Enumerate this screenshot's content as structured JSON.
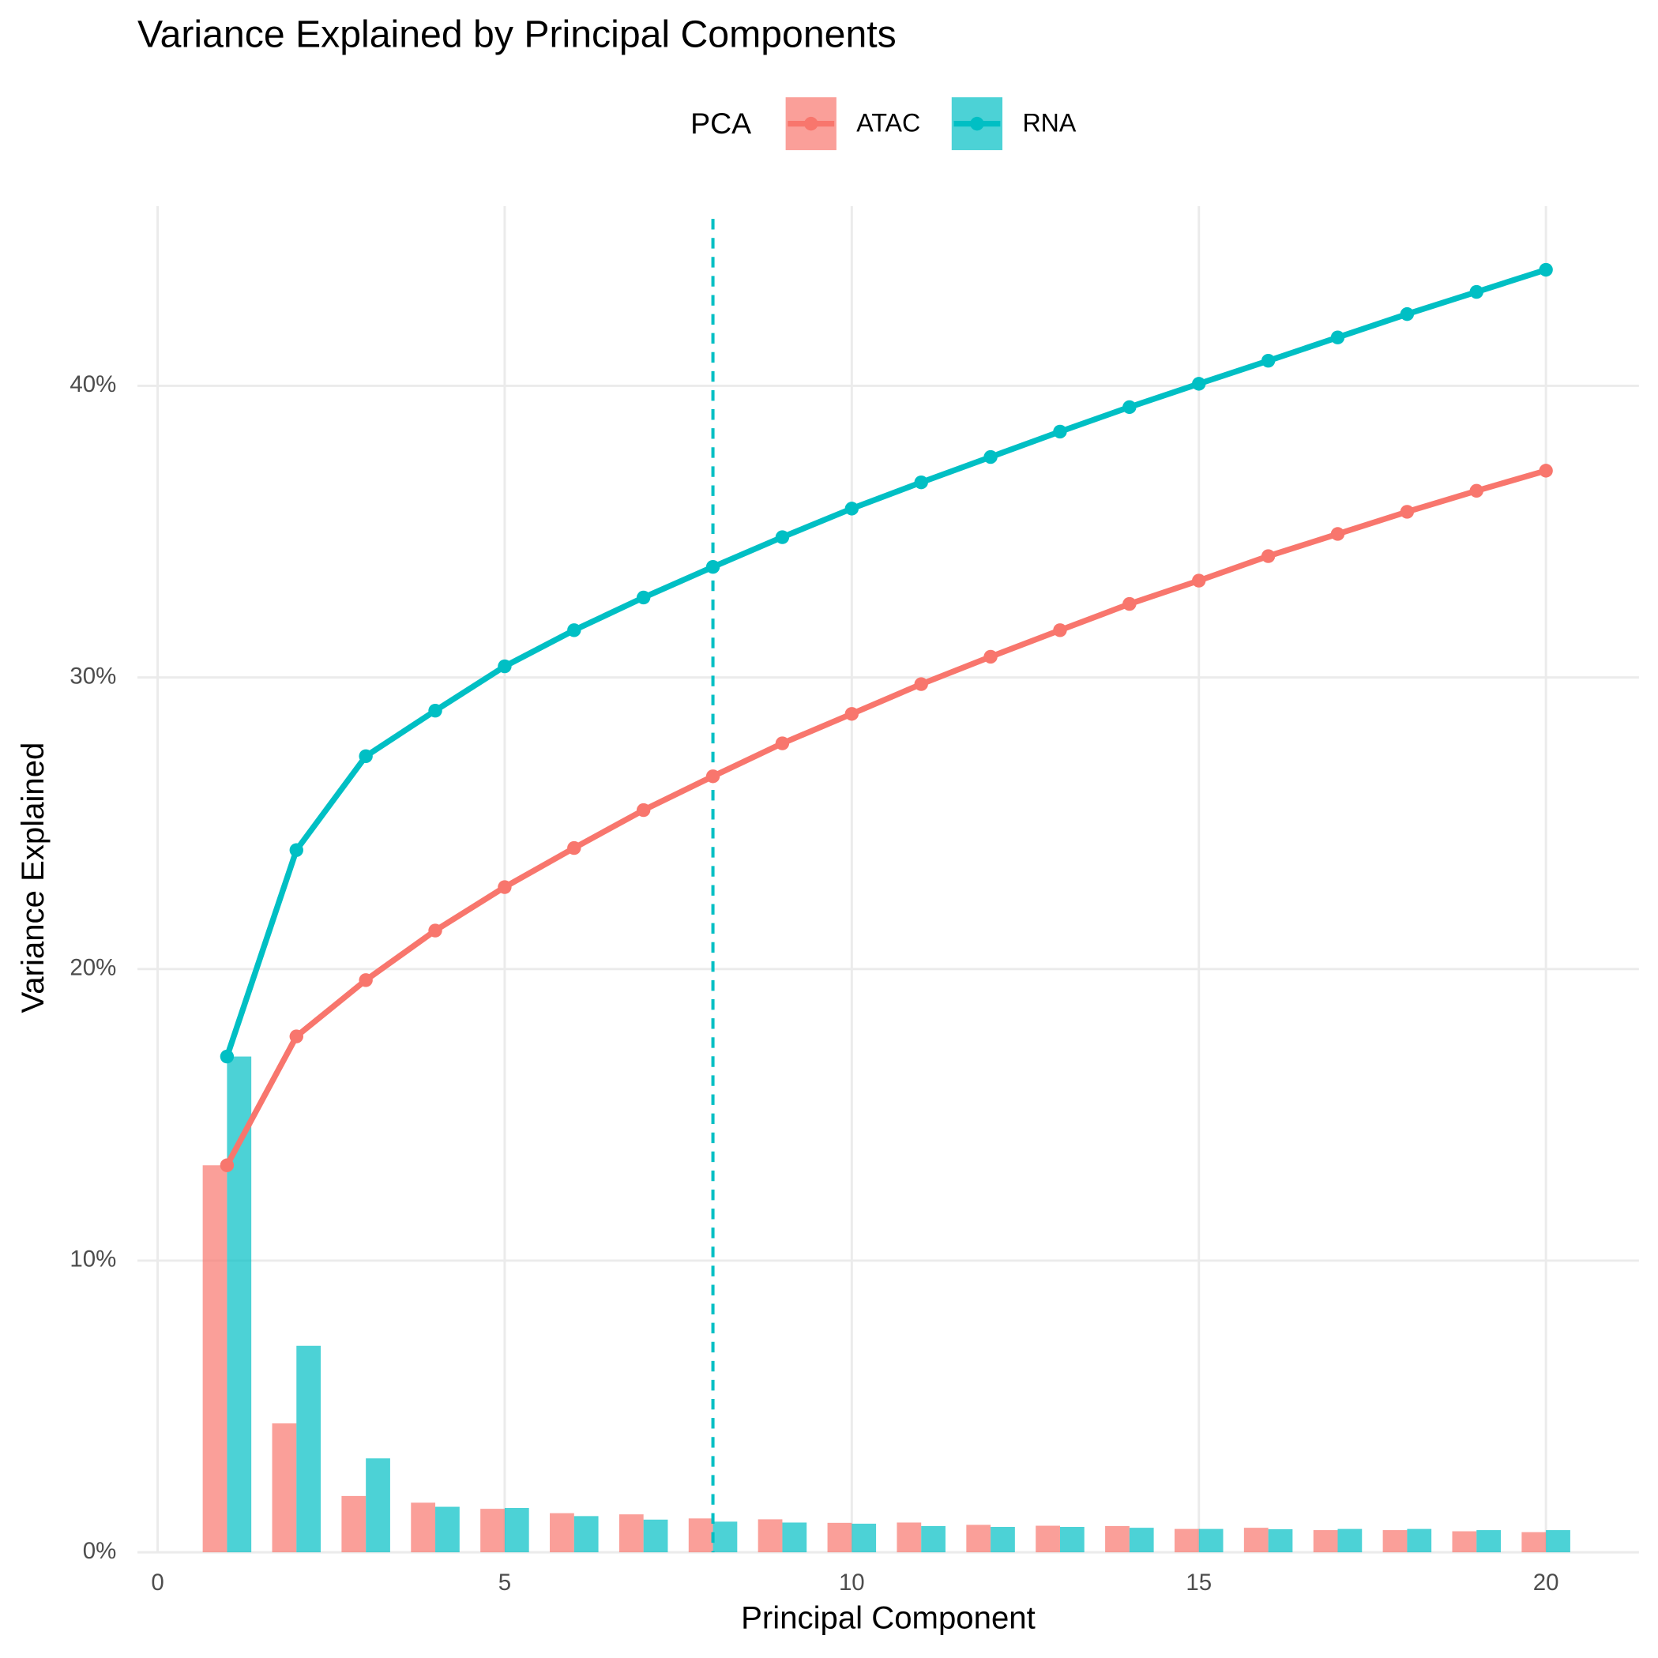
{
  "chart_data": {
    "type": "combo",
    "title": "Variance Explained by Principal Components",
    "x_label": "Principal Component",
    "y_label": "Variance Explained",
    "legend_title": "PCA",
    "legend_position": "top",
    "x": [
      1,
      2,
      3,
      4,
      5,
      6,
      7,
      8,
      9,
      10,
      11,
      12,
      13,
      14,
      15,
      16,
      17,
      18,
      19,
      20
    ],
    "series": [
      {
        "name": "ATAC",
        "color": "#F8766D",
        "values": [
          13.27,
          4.42,
          1.93,
          1.7,
          1.49,
          1.34,
          1.3,
          1.16,
          1.13,
          1.01,
          1.02,
          0.94,
          0.91,
          0.9,
          0.8,
          0.84,
          0.76,
          0.76,
          0.72,
          0.69
        ],
        "cumulative": [
          13.27,
          17.69,
          19.62,
          21.32,
          22.81,
          24.15,
          25.45,
          26.61,
          27.74,
          28.75,
          29.77,
          30.71,
          31.62,
          32.52,
          33.32,
          34.16,
          34.92,
          35.68,
          36.4,
          37.09
        ]
      },
      {
        "name": "RNA",
        "color": "#00BFC4",
        "values": [
          17.0,
          7.08,
          3.22,
          1.56,
          1.52,
          1.24,
          1.12,
          1.05,
          1.02,
          0.98,
          0.9,
          0.87,
          0.87,
          0.84,
          0.8,
          0.79,
          0.8,
          0.8,
          0.76,
          0.76
        ],
        "cumulative": [
          17.0,
          24.08,
          27.3,
          28.86,
          30.38,
          31.62,
          32.74,
          33.79,
          34.81,
          35.79,
          36.69,
          37.56,
          38.43,
          39.27,
          40.07,
          40.86,
          41.66,
          42.46,
          43.22,
          43.98
        ]
      }
    ],
    "vline": {
      "x": 8,
      "color": "#00BFC4"
    },
    "xlim": [
      -0.29,
      21.34
    ],
    "xticks": [
      0,
      5,
      10,
      15,
      20
    ],
    "ylim": [
      0,
      46.16
    ],
    "yticks": [
      {
        "value": 0,
        "label": "0%"
      },
      {
        "value": 10,
        "label": "10%"
      },
      {
        "value": 20,
        "label": "20%"
      },
      {
        "value": 30,
        "label": "30%"
      },
      {
        "value": 40,
        "label": "40%"
      }
    ],
    "grid": true
  }
}
